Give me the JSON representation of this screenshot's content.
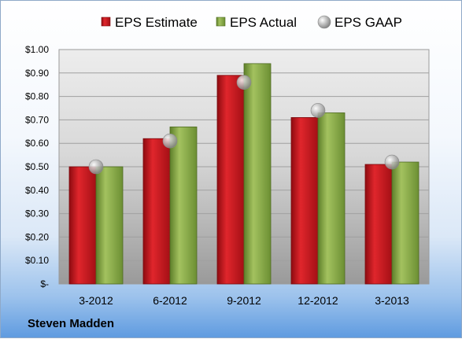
{
  "company": "Steven Madden",
  "chart_data": {
    "type": "bar",
    "categories": [
      "3-2012",
      "6-2012",
      "9-2012",
      "12-2012",
      "3-2013"
    ],
    "series": [
      {
        "name": "EPS Estimate",
        "type": "bar",
        "color": "#c8141c",
        "values": [
          0.5,
          0.62,
          0.89,
          0.71,
          0.51
        ]
      },
      {
        "name": "EPS Actual",
        "type": "bar",
        "color": "#8db04a",
        "values": [
          0.5,
          0.67,
          0.94,
          0.73,
          0.52
        ]
      },
      {
        "name": "EPS GAAP",
        "type": "marker",
        "color": "#a9a9a9",
        "values": [
          0.5,
          0.61,
          0.86,
          0.74,
          0.52
        ]
      }
    ],
    "y_ticks": [
      "$-",
      "$0.10",
      "$0.20",
      "$0.30",
      "$0.40",
      "$0.50",
      "$0.60",
      "$0.70",
      "$0.80",
      "$0.90",
      "$1.00"
    ],
    "ylim": [
      0,
      1.0
    ],
    "grid": true,
    "legend_position": "top"
  }
}
